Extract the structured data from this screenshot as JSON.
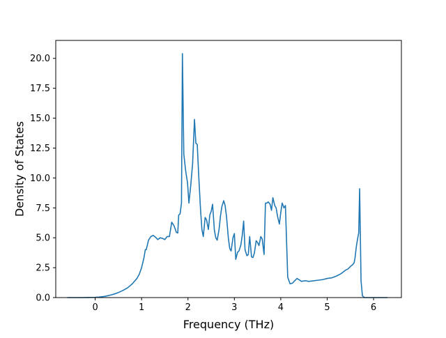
{
  "chart_data": {
    "type": "line",
    "title": "",
    "xlabel": "Frequency (THz)",
    "ylabel": "Density of States",
    "xlim": [
      -0.85,
      6.6
    ],
    "ylim": [
      0,
      21.5
    ],
    "xticks": [
      0,
      1,
      2,
      3,
      4,
      5,
      6
    ],
    "xtick_labels": [
      "0",
      "1",
      "2",
      "3",
      "4",
      "5",
      "6"
    ],
    "yticks": [
      0,
      2.5,
      5,
      7.5,
      10,
      12.5,
      15,
      17.5,
      20
    ],
    "ytick_labels": [
      "0.0",
      "2.5",
      "5.0",
      "7.5",
      "10.0",
      "12.5",
      "15.0",
      "17.5",
      "20.0"
    ],
    "grid": false,
    "line_color": "#1f77b4",
    "series": [
      {
        "x": [
          -0.6,
          -0.3,
          0.0,
          0.1,
          0.2,
          0.3,
          0.4,
          0.5,
          0.6,
          0.7,
          0.8,
          0.9,
          0.95,
          1.0,
          1.05,
          1.08,
          1.1,
          1.15,
          1.2,
          1.25,
          1.3,
          1.35,
          1.4,
          1.45,
          1.5,
          1.55,
          1.6,
          1.65,
          1.7,
          1.75,
          1.78,
          1.8,
          1.83,
          1.86,
          1.88,
          1.91,
          1.95,
          1.99,
          2.02,
          2.06,
          2.1,
          2.14,
          2.17,
          2.2,
          2.23,
          2.27,
          2.3,
          2.33,
          2.37,
          2.4,
          2.44,
          2.47,
          2.5,
          2.53,
          2.57,
          2.6,
          2.63,
          2.67,
          2.7,
          2.73,
          2.77,
          2.8,
          2.83,
          2.87,
          2.9,
          2.93,
          2.97,
          3.0,
          3.03,
          3.07,
          3.1,
          3.14,
          3.17,
          3.2,
          3.23,
          3.27,
          3.3,
          3.33,
          3.37,
          3.4,
          3.43,
          3.47,
          3.5,
          3.53,
          3.57,
          3.6,
          3.64,
          3.67,
          3.7,
          3.73,
          3.77,
          3.8,
          3.83,
          3.87,
          3.9,
          3.93,
          3.97,
          4.0,
          4.03,
          4.07,
          4.1,
          4.15,
          4.2,
          4.25,
          4.3,
          4.35,
          4.45,
          4.5,
          4.55,
          4.6,
          4.8,
          4.9,
          5.0,
          5.1,
          5.2,
          5.3,
          5.4,
          5.45,
          5.5,
          5.55,
          5.58,
          5.6,
          5.63,
          5.66,
          5.68,
          5.7,
          5.73,
          5.76,
          5.8,
          6.0,
          6.3
        ],
        "y": [
          0.0,
          0.0,
          0.02,
          0.05,
          0.1,
          0.18,
          0.28,
          0.42,
          0.6,
          0.82,
          1.15,
          1.6,
          1.95,
          2.5,
          3.3,
          4.0,
          4.0,
          4.8,
          5.1,
          5.2,
          5.05,
          4.85,
          5.0,
          4.95,
          4.85,
          5.1,
          5.1,
          6.3,
          6.0,
          5.45,
          5.4,
          6.9,
          7.0,
          7.9,
          20.4,
          12.0,
          10.6,
          9.6,
          7.9,
          9.4,
          11.2,
          14.9,
          12.9,
          12.8,
          10.3,
          7.4,
          5.7,
          5.1,
          6.7,
          6.5,
          5.7,
          6.9,
          7.2,
          7.8,
          5.6,
          5.0,
          4.8,
          5.7,
          6.8,
          7.6,
          8.1,
          7.7,
          6.8,
          5.0,
          4.1,
          3.9,
          5.0,
          5.35,
          3.2,
          3.8,
          3.9,
          4.4,
          5.2,
          6.4,
          4.0,
          3.5,
          3.6,
          5.1,
          3.4,
          3.35,
          3.7,
          4.75,
          4.6,
          4.35,
          5.1,
          4.9,
          3.6,
          7.9,
          7.9,
          8.0,
          7.8,
          7.3,
          8.35,
          7.7,
          7.5,
          6.8,
          6.15,
          7.1,
          7.9,
          7.5,
          7.7,
          1.7,
          1.15,
          1.2,
          1.4,
          1.6,
          1.35,
          1.4,
          1.4,
          1.35,
          1.45,
          1.5,
          1.6,
          1.65,
          1.8,
          2.0,
          2.3,
          2.4,
          2.6,
          2.75,
          2.9,
          3.3,
          4.3,
          5.0,
          5.4,
          9.1,
          1.4,
          0.15,
          0.0,
          0.0,
          0.0
        ]
      }
    ]
  }
}
